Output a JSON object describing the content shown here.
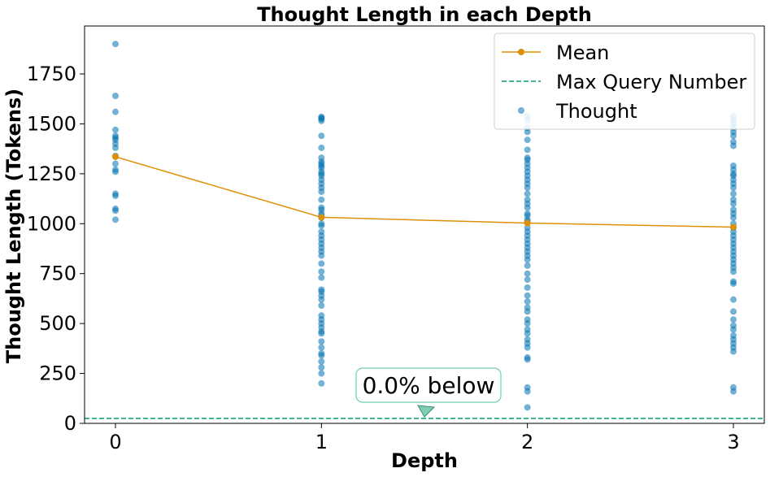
{
  "chart_data": {
    "type": "scatter",
    "title": "Thought Length in each Depth",
    "xlabel": "Depth",
    "ylabel": "Thought Length (Tokens)",
    "xlim": [
      -0.15,
      3.15
    ],
    "ylim": [
      0,
      1990
    ],
    "xticks": [
      0,
      1,
      2,
      3
    ],
    "xtick_labels": [
      "0",
      "1",
      "2",
      "3"
    ],
    "yticks": [
      0,
      250,
      500,
      750,
      1000,
      1250,
      1500,
      1750
    ],
    "ytick_labels": [
      "0",
      "250",
      "500",
      "750",
      "1000",
      "1250",
      "1500",
      "1750"
    ],
    "grid": false,
    "legend": {
      "placement": "top-right",
      "entries": [
        "Mean",
        "Max Query Number",
        "Thought"
      ]
    },
    "series": [
      {
        "name": "Thought",
        "kind": "scatter",
        "color": "#0173b2",
        "points": [
          [
            0,
            1900
          ],
          [
            0,
            1640
          ],
          [
            0,
            1560
          ],
          [
            0,
            1470
          ],
          [
            0,
            1440
          ],
          [
            0,
            1430
          ],
          [
            0,
            1420
          ],
          [
            0,
            1400
          ],
          [
            0,
            1380
          ],
          [
            0,
            1340
          ],
          [
            0,
            1300
          ],
          [
            0,
            1270
          ],
          [
            0,
            1260
          ],
          [
            0,
            1150
          ],
          [
            0,
            1140
          ],
          [
            0,
            1075
          ],
          [
            0,
            1065
          ],
          [
            0,
            1020
          ],
          [
            1,
            1535
          ],
          [
            1,
            1530
          ],
          [
            1,
            1525
          ],
          [
            1,
            1515
          ],
          [
            1,
            1440
          ],
          [
            1,
            1380
          ],
          [
            1,
            1330
          ],
          [
            1,
            1310
          ],
          [
            1,
            1300
          ],
          [
            1,
            1290
          ],
          [
            1,
            1280
          ],
          [
            1,
            1260
          ],
          [
            1,
            1250
          ],
          [
            1,
            1240
          ],
          [
            1,
            1220
          ],
          [
            1,
            1200
          ],
          [
            1,
            1180
          ],
          [
            1,
            1160
          ],
          [
            1,
            1120
          ],
          [
            1,
            1080
          ],
          [
            1,
            1070
          ],
          [
            1,
            1050
          ],
          [
            1,
            1040
          ],
          [
            1,
            1030
          ],
          [
            1,
            1000
          ],
          [
            1,
            990
          ],
          [
            1,
            960
          ],
          [
            1,
            940
          ],
          [
            1,
            920
          ],
          [
            1,
            900
          ],
          [
            1,
            880
          ],
          [
            1,
            860
          ],
          [
            1,
            840
          ],
          [
            1,
            800
          ],
          [
            1,
            760
          ],
          [
            1,
            730
          ],
          [
            1,
            670
          ],
          [
            1,
            660
          ],
          [
            1,
            640
          ],
          [
            1,
            620
          ],
          [
            1,
            590
          ],
          [
            1,
            540
          ],
          [
            1,
            520
          ],
          [
            1,
            500
          ],
          [
            1,
            480
          ],
          [
            1,
            460
          ],
          [
            1,
            450
          ],
          [
            1,
            410
          ],
          [
            1,
            380
          ],
          [
            1,
            350
          ],
          [
            1,
            340
          ],
          [
            1,
            310
          ],
          [
            1,
            280
          ],
          [
            1,
            250
          ],
          [
            1,
            200
          ],
          [
            2,
            1540
          ],
          [
            2,
            1520
          ],
          [
            2,
            1480
          ],
          [
            2,
            1460
          ],
          [
            2,
            1420
          ],
          [
            2,
            1370
          ],
          [
            2,
            1330
          ],
          [
            2,
            1320
          ],
          [
            2,
            1300
          ],
          [
            2,
            1280
          ],
          [
            2,
            1260
          ],
          [
            2,
            1240
          ],
          [
            2,
            1220
          ],
          [
            2,
            1200
          ],
          [
            2,
            1180
          ],
          [
            2,
            1150
          ],
          [
            2,
            1120
          ],
          [
            2,
            1100
          ],
          [
            2,
            1080
          ],
          [
            2,
            1050
          ],
          [
            2,
            1040
          ],
          [
            2,
            1020
          ],
          [
            2,
            1010
          ],
          [
            2,
            980
          ],
          [
            2,
            960
          ],
          [
            2,
            940
          ],
          [
            2,
            920
          ],
          [
            2,
            900
          ],
          [
            2,
            880
          ],
          [
            2,
            860
          ],
          [
            2,
            840
          ],
          [
            2,
            820
          ],
          [
            2,
            790
          ],
          [
            2,
            750
          ],
          [
            2,
            720
          ],
          [
            2,
            680
          ],
          [
            2,
            640
          ],
          [
            2,
            610
          ],
          [
            2,
            580
          ],
          [
            2,
            560
          ],
          [
            2,
            520
          ],
          [
            2,
            500
          ],
          [
            2,
            470
          ],
          [
            2,
            450
          ],
          [
            2,
            420
          ],
          [
            2,
            400
          ],
          [
            2,
            380
          ],
          [
            2,
            330
          ],
          [
            2,
            320
          ],
          [
            2,
            180
          ],
          [
            2,
            160
          ],
          [
            2,
            80
          ],
          [
            3,
            1540
          ],
          [
            3,
            1520
          ],
          [
            3,
            1500
          ],
          [
            3,
            1480
          ],
          [
            3,
            1460
          ],
          [
            3,
            1440
          ],
          [
            3,
            1410
          ],
          [
            3,
            1390
          ],
          [
            3,
            1290
          ],
          [
            3,
            1270
          ],
          [
            3,
            1250
          ],
          [
            3,
            1240
          ],
          [
            3,
            1220
          ],
          [
            3,
            1200
          ],
          [
            3,
            1180
          ],
          [
            3,
            1150
          ],
          [
            3,
            1120
          ],
          [
            3,
            1100
          ],
          [
            3,
            1070
          ],
          [
            3,
            1050
          ],
          [
            3,
            1030
          ],
          [
            3,
            1000
          ],
          [
            3,
            980
          ],
          [
            3,
            960
          ],
          [
            3,
            940
          ],
          [
            3,
            920
          ],
          [
            3,
            900
          ],
          [
            3,
            880
          ],
          [
            3,
            860
          ],
          [
            3,
            840
          ],
          [
            3,
            820
          ],
          [
            3,
            800
          ],
          [
            3,
            780
          ],
          [
            3,
            760
          ],
          [
            3,
            710
          ],
          [
            3,
            700
          ],
          [
            3,
            620
          ],
          [
            3,
            560
          ],
          [
            3,
            520
          ],
          [
            3,
            490
          ],
          [
            3,
            470
          ],
          [
            3,
            440
          ],
          [
            3,
            420
          ],
          [
            3,
            400
          ],
          [
            3,
            380
          ],
          [
            3,
            360
          ],
          [
            3,
            180
          ],
          [
            3,
            160
          ]
        ]
      },
      {
        "name": "Mean",
        "kind": "line",
        "color": "#de8f05",
        "x": [
          0,
          1,
          2,
          3
        ],
        "y": [
          1335,
          1032,
          1003,
          983
        ]
      },
      {
        "name": "Max Query Number",
        "kind": "hline",
        "color": "#029e73",
        "y": 25
      }
    ],
    "annotation": {
      "text": "0.0% below",
      "x": 1.5,
      "y": 25
    }
  }
}
